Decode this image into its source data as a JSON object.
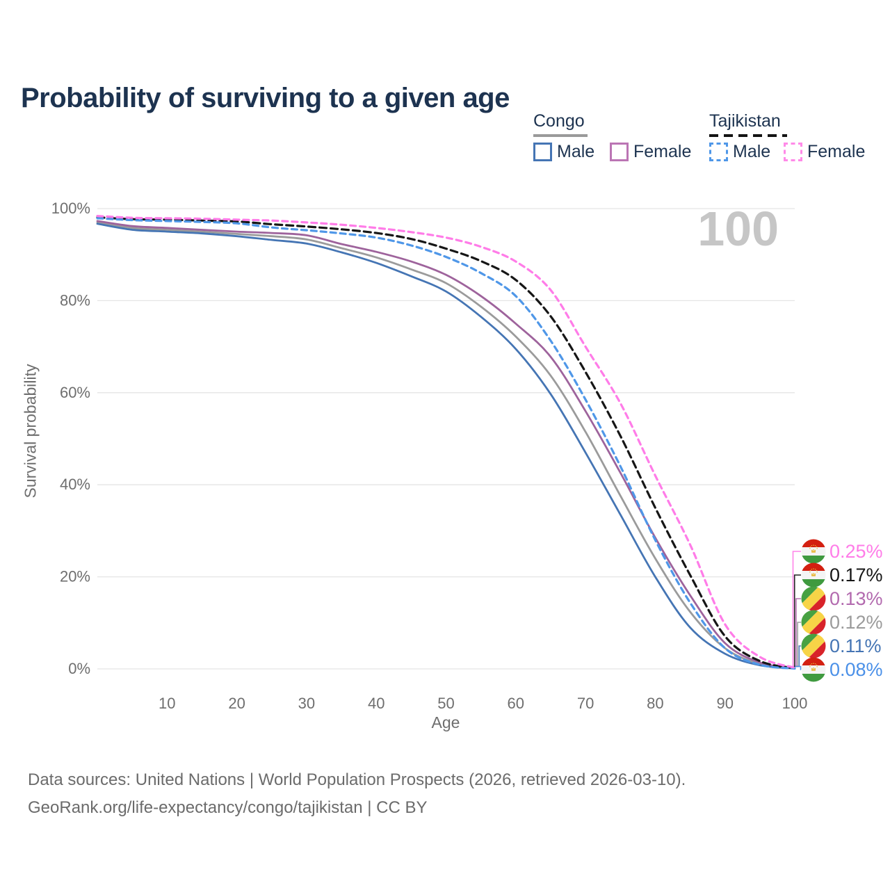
{
  "title": "Probability of surviving to a given age",
  "watermark": "100",
  "legend": {
    "congo": {
      "label": "Congo",
      "male": "Male",
      "female": "Female"
    },
    "tajikistan": {
      "label": "Tajikistan",
      "male": "Male",
      "female": "Female"
    }
  },
  "colors": {
    "title": "#1d3350",
    "axis_text": "#6e6e6e",
    "grid": "#e5e5e5",
    "watermark": "#c6c6c6",
    "congo_male": "#4575b4",
    "congo_female": "#9e639c",
    "congo_total": "#9b9b9b",
    "tajikistan_male": "#4f97e8",
    "tajikistan_female": "#ff7ce8",
    "tajikistan_total": "#161616"
  },
  "chart_data": {
    "type": "line",
    "title": "Probability of surviving to a given age",
    "xlabel": "Age",
    "ylabel": "Survival probability",
    "xlim": [
      0,
      100
    ],
    "ylim": [
      0,
      100
    ],
    "x_ticks": [
      10,
      20,
      30,
      40,
      50,
      60,
      70,
      80,
      90,
      100
    ],
    "y_ticks": [
      0,
      20,
      40,
      60,
      80,
      100
    ],
    "y_tick_suffix": "%",
    "grid": "horizontal",
    "legend_position": "top-right",
    "x": [
      0,
      5,
      10,
      15,
      20,
      25,
      30,
      35,
      40,
      45,
      50,
      55,
      60,
      65,
      70,
      75,
      80,
      85,
      90,
      95,
      100
    ],
    "series": [
      {
        "name": "Congo (both sexes)",
        "country": "Congo",
        "flag": "congo",
        "style": "solid",
        "color": "#9b9b9b",
        "end_label": "0.12%",
        "values": [
          97.0,
          95.8,
          95.4,
          95.0,
          94.5,
          94.0,
          93.3,
          91.4,
          89.4,
          86.8,
          83.8,
          78.7,
          72.2,
          63.7,
          51.5,
          37.6,
          24.0,
          12.4,
          4.5,
          1.1,
          0.12
        ]
      },
      {
        "name": "Congo Female",
        "country": "Congo",
        "flag": "congo",
        "style": "solid",
        "color": "#9e639c",
        "end_label": "0.13%",
        "values": [
          97.3,
          96.2,
          95.8,
          95.4,
          95.0,
          94.7,
          94.2,
          92.3,
          90.6,
          88.5,
          85.6,
          81.0,
          75.0,
          67.8,
          56.0,
          42.6,
          28.5,
          16.0,
          5.6,
          1.4,
          0.13
        ]
      },
      {
        "name": "Congo Male",
        "country": "Congo",
        "flag": "congo",
        "style": "solid",
        "color": "#4575b4",
        "end_label": "0.11%",
        "values": [
          96.7,
          95.4,
          95.0,
          94.6,
          94.0,
          93.2,
          92.4,
          90.5,
          88.2,
          85.3,
          82.0,
          76.5,
          69.5,
          59.7,
          47.0,
          33.5,
          20.0,
          9.0,
          3.3,
          0.8,
          0.11
        ]
      },
      {
        "name": "Tajikistan (both sexes)",
        "country": "Tajikistan",
        "flag": "tajikistan",
        "style": "dashed",
        "color": "#161616",
        "end_label": "0.17%",
        "values": [
          98.1,
          97.7,
          97.6,
          97.4,
          97.2,
          96.6,
          96.1,
          95.5,
          94.7,
          93.4,
          91.3,
          88.6,
          84.5,
          76.6,
          64.5,
          50.6,
          35.0,
          20.4,
          7.1,
          1.7,
          0.17
        ]
      },
      {
        "name": "Tajikistan Male",
        "country": "Tajikistan",
        "flag": "tajikistan",
        "style": "dashed",
        "color": "#4f97e8",
        "end_label": "0.08%",
        "values": [
          97.9,
          97.5,
          97.3,
          97.1,
          96.8,
          95.9,
          95.3,
          94.6,
          93.7,
          92.0,
          89.5,
          86.0,
          81.0,
          71.3,
          58.5,
          44.0,
          28.0,
          14.4,
          4.5,
          0.9,
          0.08
        ]
      },
      {
        "name": "Tajikistan Female",
        "country": "Tajikistan",
        "flag": "tajikistan",
        "style": "dashed",
        "color": "#ff7ce8",
        "end_label": "0.25%",
        "values": [
          98.4,
          98.0,
          97.9,
          97.8,
          97.6,
          97.4,
          97.0,
          96.5,
          95.8,
          94.9,
          93.7,
          91.7,
          88.5,
          82.3,
          70.0,
          57.7,
          42.0,
          27.0,
          9.7,
          2.6,
          0.25
        ]
      }
    ]
  },
  "end_labels": [
    {
      "text": "0.25%",
      "color": "#ff7ce8",
      "flag": "tajikistan",
      "series": "Tajikistan Female"
    },
    {
      "text": "0.17%",
      "color": "#161616",
      "flag": "tajikistan",
      "series": "Tajikistan (both sexes)"
    },
    {
      "text": "0.13%",
      "color": "#b269ae",
      "flag": "congo",
      "series": "Congo Female"
    },
    {
      "text": "0.12%",
      "color": "#9b9b9b",
      "flag": "congo",
      "series": "Congo (both sexes)"
    },
    {
      "text": "0.11%",
      "color": "#4575b4",
      "flag": "congo",
      "series": "Congo Male"
    },
    {
      "text": "0.08%",
      "color": "#4a90e8",
      "flag": "tajikistan",
      "series": "Tajikistan Male"
    }
  ],
  "footer": {
    "line1": "Data sources: United Nations | World Population Prospects (2026, retrieved 2026-03-10).",
    "line2": "GeoRank.org/life-expectancy/congo/tajikistan | CC BY"
  }
}
